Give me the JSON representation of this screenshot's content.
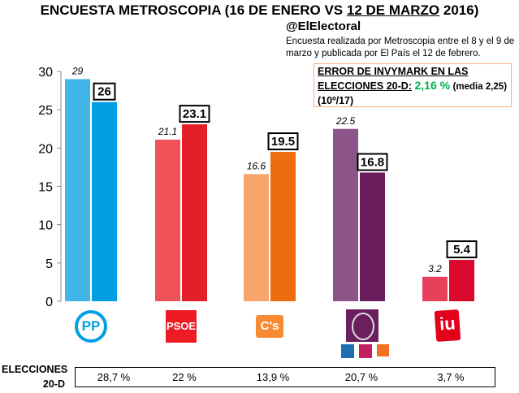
{
  "title_parts": [
    "ENCUESTA METROSCOPIA (16 DE ENERO VS ",
    "12 DE MARZO",
    " 2016)"
  ],
  "handle": "@ElElectoral",
  "note": "Encuesta realizada por Metroscopia entre el 8 y el 9 de marzo y publicada por El País el 12 de febrero.",
  "error_box": {
    "line1": "ERROR DE INVYMARK EN LAS",
    "line2": "ELECCIONES 20-D:",
    "value": "2,16 %",
    "media": "(media 2,25)",
    "rank": "(10º/17)",
    "value_color": "#00b050"
  },
  "elections_label": [
    "ELECCIONES",
    "20-D"
  ],
  "elections_results": [
    "28,7 %",
    "22 %",
    "13,9 %",
    "20,7 %",
    "3,7 %"
  ],
  "chart_data": {
    "type": "bar",
    "categories": [
      "PP",
      "PSOE",
      "C's",
      "Podemos",
      "IU"
    ],
    "series": [
      {
        "values": [
          29,
          21.1,
          16.6,
          22.5,
          3.2
        ],
        "colors": [
          "#41b6e6",
          "#f0525a",
          "#f8a46a",
          "#8b558a",
          "#e8405a"
        ],
        "labels": [
          "29",
          "21.1",
          "16.6",
          "22.5",
          "3.2"
        ]
      },
      {
        "values": [
          26,
          23.1,
          19.5,
          16.8,
          5.4
        ],
        "colors": [
          "#009fe3",
          "#e3202a",
          "#ec6c0e",
          "#6b1d5e",
          "#d9082c"
        ],
        "labels": [
          "26",
          "23.1",
          "19.5",
          "16.8",
          "5.4"
        ]
      }
    ],
    "ylim": [
      0,
      30
    ],
    "yticks": [
      "0",
      "5",
      "10",
      "15",
      "20",
      "25",
      "30"
    ],
    "grid": false
  },
  "logos": {
    "pp": "PP",
    "psoe": "PSOE",
    "cs": "C's",
    "iu": "iu"
  }
}
